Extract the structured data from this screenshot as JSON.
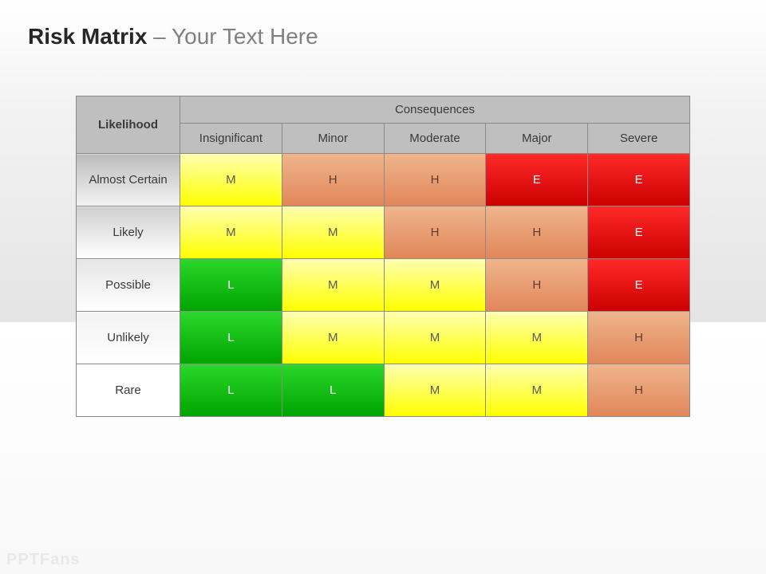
{
  "title": {
    "bold": "Risk Matrix",
    "rest": " – Your Text Here"
  },
  "watermark": "PPTFans",
  "colors": {
    "header_bg": "#bfbfbf",
    "border": "#8a8a8a",
    "text": "#3a3a3a",
    "row_hdr_gradients": [
      [
        "#bcbcbc",
        "#f3f3f3"
      ],
      [
        "#cfcfcf",
        "#ffffff"
      ],
      [
        "#e6e6e6",
        "#ffffff"
      ],
      [
        "#f3f3f3",
        "#ffffff"
      ],
      [
        "#ffffff",
        "#ffffff"
      ]
    ],
    "cell_gradients": {
      "L": {
        "top": "#2bd82b",
        "bottom": "#00a400",
        "text": "#ffffff"
      },
      "M": {
        "top": "#ffffb0",
        "bottom": "#ffff00",
        "text": "#595959"
      },
      "H": {
        "top": "#f0b48c",
        "bottom": "#e1875a",
        "text": "#5e3d2b"
      },
      "E": {
        "top": "#ff2a2a",
        "bottom": "#cc0000",
        "text": "#ffffff"
      }
    }
  },
  "matrix": {
    "likelihood_label": "Likelihood",
    "consequences_label": "Consequences",
    "columns": [
      "Insignificant",
      "Minor",
      "Moderate",
      "Major",
      "Severe"
    ],
    "rows": [
      {
        "label": "Almost Certain",
        "cells": [
          "M",
          "H",
          "H",
          "E",
          "E"
        ]
      },
      {
        "label": "Likely",
        "cells": [
          "M",
          "M",
          "H",
          "H",
          "E"
        ]
      },
      {
        "label": "Possible",
        "cells": [
          "L",
          "M",
          "M",
          "H",
          "E"
        ]
      },
      {
        "label": "Unlikely",
        "cells": [
          "L",
          "M",
          "M",
          "M",
          "H"
        ]
      },
      {
        "label": "Rare",
        "cells": [
          "L",
          "L",
          "M",
          "M",
          "H"
        ]
      }
    ]
  }
}
